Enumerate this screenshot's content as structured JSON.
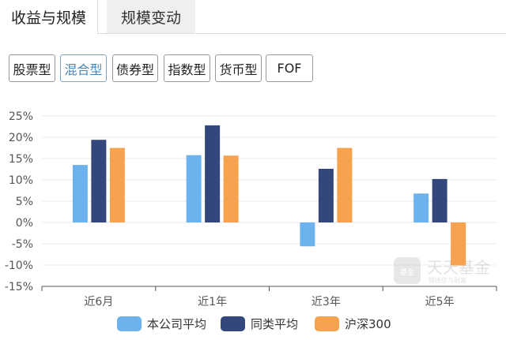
{
  "tabs": [
    {
      "label": "收益与规模",
      "active": true
    },
    {
      "label": "规模变动",
      "active": false
    }
  ],
  "filters": [
    {
      "label": "股票型"
    },
    {
      "label": "混合型",
      "selected": true
    },
    {
      "label": "债券型"
    },
    {
      "label": "指数型"
    },
    {
      "label": "货币型"
    },
    {
      "label": "FOF"
    }
  ],
  "watermark": {
    "text": "天天基金",
    "subtext": "链接您与财富",
    "icon_text": "基金"
  },
  "chart_data": {
    "type": "bar",
    "categories": [
      "近6月",
      "近1年",
      "近3年",
      "近5年"
    ],
    "series": [
      {
        "name": "本公司平均",
        "color": "#6cb2ec",
        "values": [
          13.5,
          15.8,
          -5.6,
          6.8
        ]
      },
      {
        "name": "同类平均",
        "color": "#34477c",
        "values": [
          19.4,
          22.8,
          12.6,
          10.2
        ]
      },
      {
        "name": "沪深300",
        "color": "#f6a24f",
        "values": [
          17.5,
          15.7,
          17.5,
          -10.1
        ]
      }
    ],
    "ylim": [
      -15,
      25
    ],
    "yticks": [
      "25%",
      "20%",
      "15%",
      "10%",
      "5%",
      "0%",
      "-5%",
      "-10%",
      "-15%"
    ],
    "grid": true,
    "legend": "bottom"
  }
}
